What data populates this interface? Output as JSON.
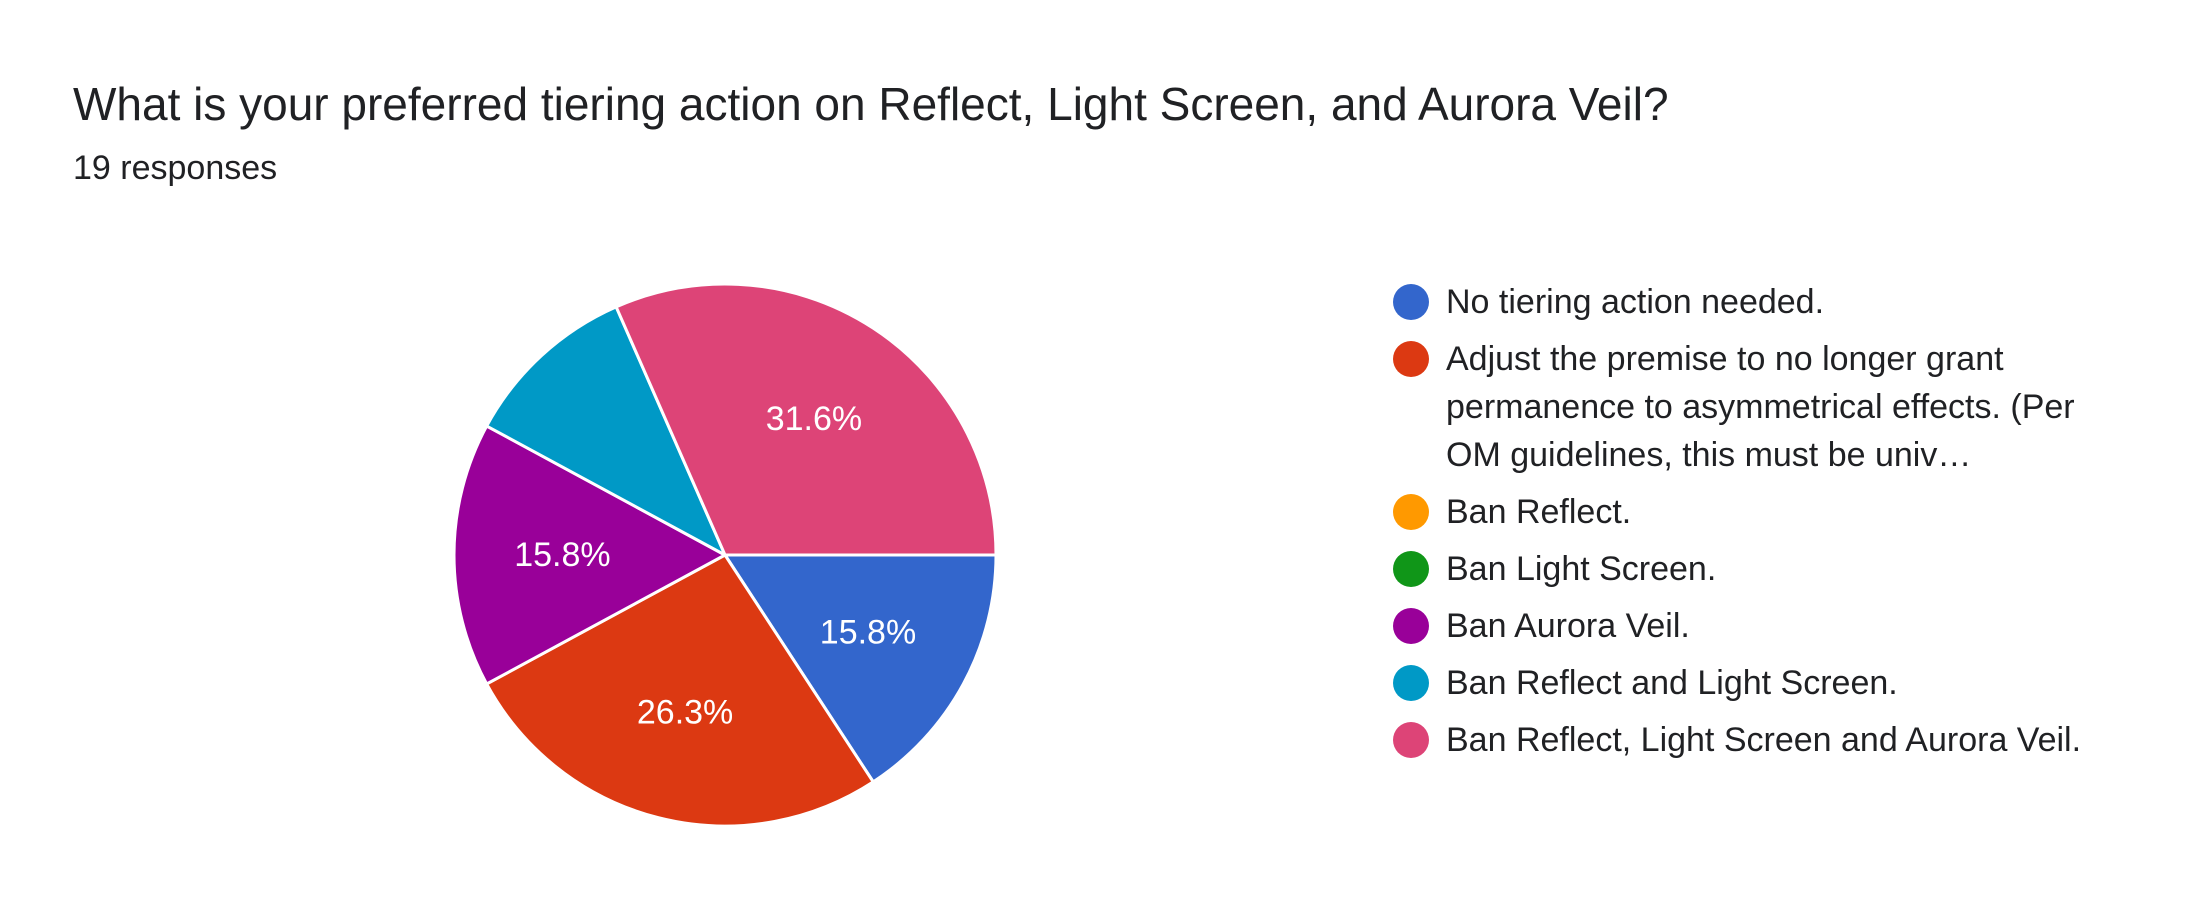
{
  "header": {
    "title": "What is your preferred tiering action on Reflect, Light Screen, and Aurora Veil?",
    "subtitle": "19 responses"
  },
  "legend": {
    "items": [
      {
        "label": "No tiering action needed.",
        "color": "#3366cc"
      },
      {
        "label": "Adjust the premise to no longer grant permanence to asymmetrical effects. (Per OM guidelines, this must be univ…",
        "color": "#dc3912"
      },
      {
        "label": "Ban Reflect.",
        "color": "#ff9900"
      },
      {
        "label": "Ban Light Screen.",
        "color": "#109618"
      },
      {
        "label": "Ban Aurora Veil.",
        "color": "#990099"
      },
      {
        "label": "Ban Reflect and Light Screen.",
        "color": "#0099c6"
      },
      {
        "label": "Ban Reflect, Light Screen and Aurora Veil.",
        "color": "#dd4477"
      }
    ]
  },
  "chart_data": {
    "type": "pie",
    "title": "What is your preferred tiering action on Reflect, Light Screen, and Aurora Veil?",
    "total_responses": 19,
    "categories": [
      "No tiering action needed.",
      "Adjust the premise to no longer grant permanence to asymmetrical effects. (Per OM guidelines, this must be univ…",
      "Ban Reflect.",
      "Ban Light Screen.",
      "Ban Aurora Veil.",
      "Ban Reflect and Light Screen.",
      "Ban Reflect, Light Screen and Aurora Veil."
    ],
    "values": [
      3,
      5,
      0,
      0,
      3,
      2,
      6
    ],
    "colors": [
      "#3366cc",
      "#dc3912",
      "#ff9900",
      "#109618",
      "#990099",
      "#0099c6",
      "#dd4477"
    ],
    "data_labels": [
      "15.8%",
      "26.3%",
      "",
      "",
      "15.8%",
      "",
      "31.6%"
    ],
    "legend_position": "right"
  }
}
